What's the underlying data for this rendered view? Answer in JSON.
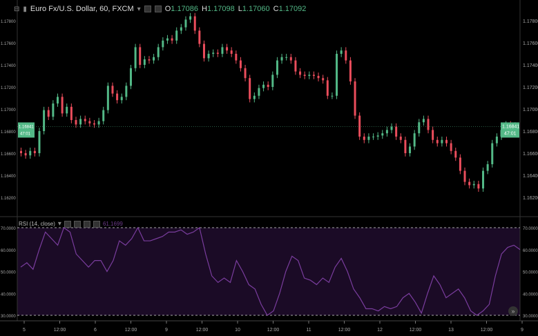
{
  "header": {
    "symbol": "Euro Fx/U.S. Dollar, 60, FXCM",
    "open_label": "O",
    "open": "1.17086",
    "high_label": "H",
    "high": "1.17098",
    "low_label": "L",
    "low": "1.17060",
    "close_label": "C",
    "close": "1.17092"
  },
  "rsi_legend": {
    "title": "RSI (14, close)",
    "value": "61.1699"
  },
  "current_price": {
    "price": "1.16841",
    "countdown": "47:01"
  },
  "colors": {
    "up": "#53b987",
    "down": "#eb4d5c",
    "rsi_line": "#7a3d9e",
    "rsi_band": "#1b0b26",
    "background": "#000000"
  },
  "icons": {
    "collapse": "minus-box-icon",
    "series": "bars-icon",
    "dropdown": "caret-down-icon",
    "scroll": "double-chevron-right-icon"
  },
  "chart_data": [
    {
      "type": "candlestick",
      "price_axis": {
        "ticks": [
          "1.17800",
          "1.17600",
          "1.17400",
          "1.17200",
          "1.17000",
          "1.16800",
          "1.16600",
          "1.16400",
          "1.16200"
        ],
        "range": [
          1.1608,
          1.1798
        ]
      },
      "x_ticks": [
        "5",
        "12:00",
        "6",
        "12:00",
        "9",
        "12:00",
        "10",
        "12:00",
        "11",
        "12:00",
        "12",
        "12:00",
        "13",
        "12:00",
        "9"
      ],
      "closes": [
        1.166,
        1.1658,
        1.1662,
        1.166,
        1.168,
        1.1699,
        1.1693,
        1.1705,
        1.1711,
        1.1696,
        1.1702,
        1.169,
        1.1686,
        1.1691,
        1.1689,
        1.1687,
        1.1686,
        1.1689,
        1.1699,
        1.1721,
        1.1714,
        1.1708,
        1.1711,
        1.1721,
        1.1737,
        1.1756,
        1.174,
        1.1745,
        1.1744,
        1.1747,
        1.1756,
        1.1762,
        1.1764,
        1.1762,
        1.1771,
        1.1774,
        1.1781,
        1.1784,
        1.1771,
        1.1759,
        1.1746,
        1.175,
        1.1751,
        1.175,
        1.1756,
        1.1753,
        1.175,
        1.1744,
        1.1737,
        1.1728,
        1.1709,
        1.1712,
        1.1719,
        1.1722,
        1.172,
        1.1731,
        1.1744,
        1.1747,
        1.1747,
        1.1744,
        1.1734,
        1.1731,
        1.173,
        1.1731,
        1.173,
        1.1728,
        1.1726,
        1.1712,
        1.1712,
        1.175,
        1.1753,
        1.1744,
        1.1725,
        1.1694,
        1.1675,
        1.1672,
        1.1675,
        1.1675,
        1.1676,
        1.1678,
        1.1681,
        1.1684,
        1.1675,
        1.1672,
        1.166,
        1.1666,
        1.1678,
        1.1688,
        1.1691,
        1.1681,
        1.1672,
        1.1669,
        1.1672,
        1.1669,
        1.1662,
        1.1656,
        1.1644,
        1.1634,
        1.1631,
        1.1632,
        1.1628,
        1.1644,
        1.165,
        1.1669,
        1.1675,
        1.1681,
        1.1686,
        1.1684,
        1.1685
      ],
      "rsi": {
        "levels": [
          70,
          30
        ],
        "ticks": [
          "70.0000",
          "60.0000",
          "50.0000",
          "40.0000",
          "30.0000"
        ],
        "range": [
          29,
          71
        ],
        "values": [
          52,
          54,
          51,
          60,
          68,
          65,
          62,
          70,
          68,
          58,
          55,
          52,
          55,
          55,
          50,
          55,
          64,
          62,
          65,
          70,
          64,
          64,
          65,
          66,
          68,
          68,
          69,
          67,
          68,
          70,
          58,
          48,
          45,
          47,
          45,
          55,
          50,
          44,
          42,
          35,
          30,
          32,
          40,
          50,
          57,
          55,
          47,
          46,
          44,
          47,
          45,
          52,
          56,
          50,
          42,
          38,
          33,
          33,
          32,
          34,
          33,
          34,
          38,
          40,
          36,
          31,
          40,
          48,
          44,
          38,
          40,
          42,
          38,
          32,
          30,
          32,
          35,
          48,
          58,
          61,
          62,
          60
        ]
      }
    }
  ]
}
